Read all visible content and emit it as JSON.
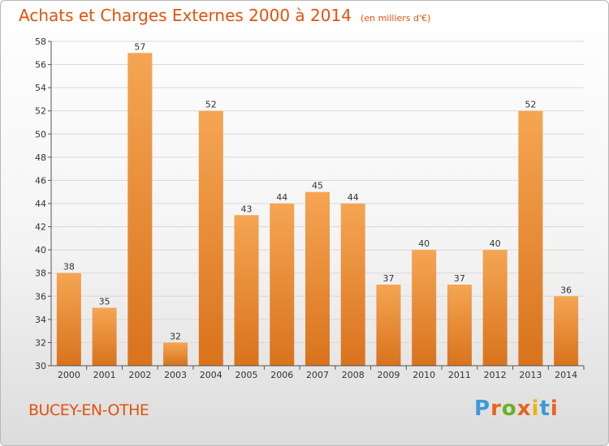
{
  "title": "Achats et Charges Externes 2000 à 2014",
  "subtitle": "(en milliers d'€)",
  "commune": "BUCEY-EN-OTHE",
  "logo": {
    "letters": [
      "P",
      "r",
      "o",
      "x",
      "i",
      "t",
      "i"
    ],
    "colors": [
      "#3a9ad9",
      "#e8641b",
      "#6ab023",
      "#e8641b",
      "#f0b400",
      "#3a9ad9",
      "#e8641b"
    ]
  },
  "colors": {
    "bar_top": "#f5a553",
    "bar_bottom": "#d9731c",
    "text": "#e0530e",
    "axis": "#555555",
    "grid": "#d9d9d9"
  },
  "chart_data": {
    "type": "bar",
    "categories": [
      "2000",
      "2001",
      "2002",
      "2003",
      "2004",
      "2005",
      "2006",
      "2007",
      "2008",
      "2009",
      "2010",
      "2011",
      "2012",
      "2013",
      "2014"
    ],
    "values": [
      38,
      35,
      57,
      32,
      52,
      43,
      44,
      45,
      44,
      37,
      40,
      37,
      40,
      52,
      36
    ],
    "ylim": [
      30,
      58
    ],
    "yticks": [
      30,
      32,
      34,
      36,
      38,
      40,
      42,
      44,
      46,
      48,
      50,
      52,
      54,
      56,
      58
    ],
    "grid": true
  }
}
